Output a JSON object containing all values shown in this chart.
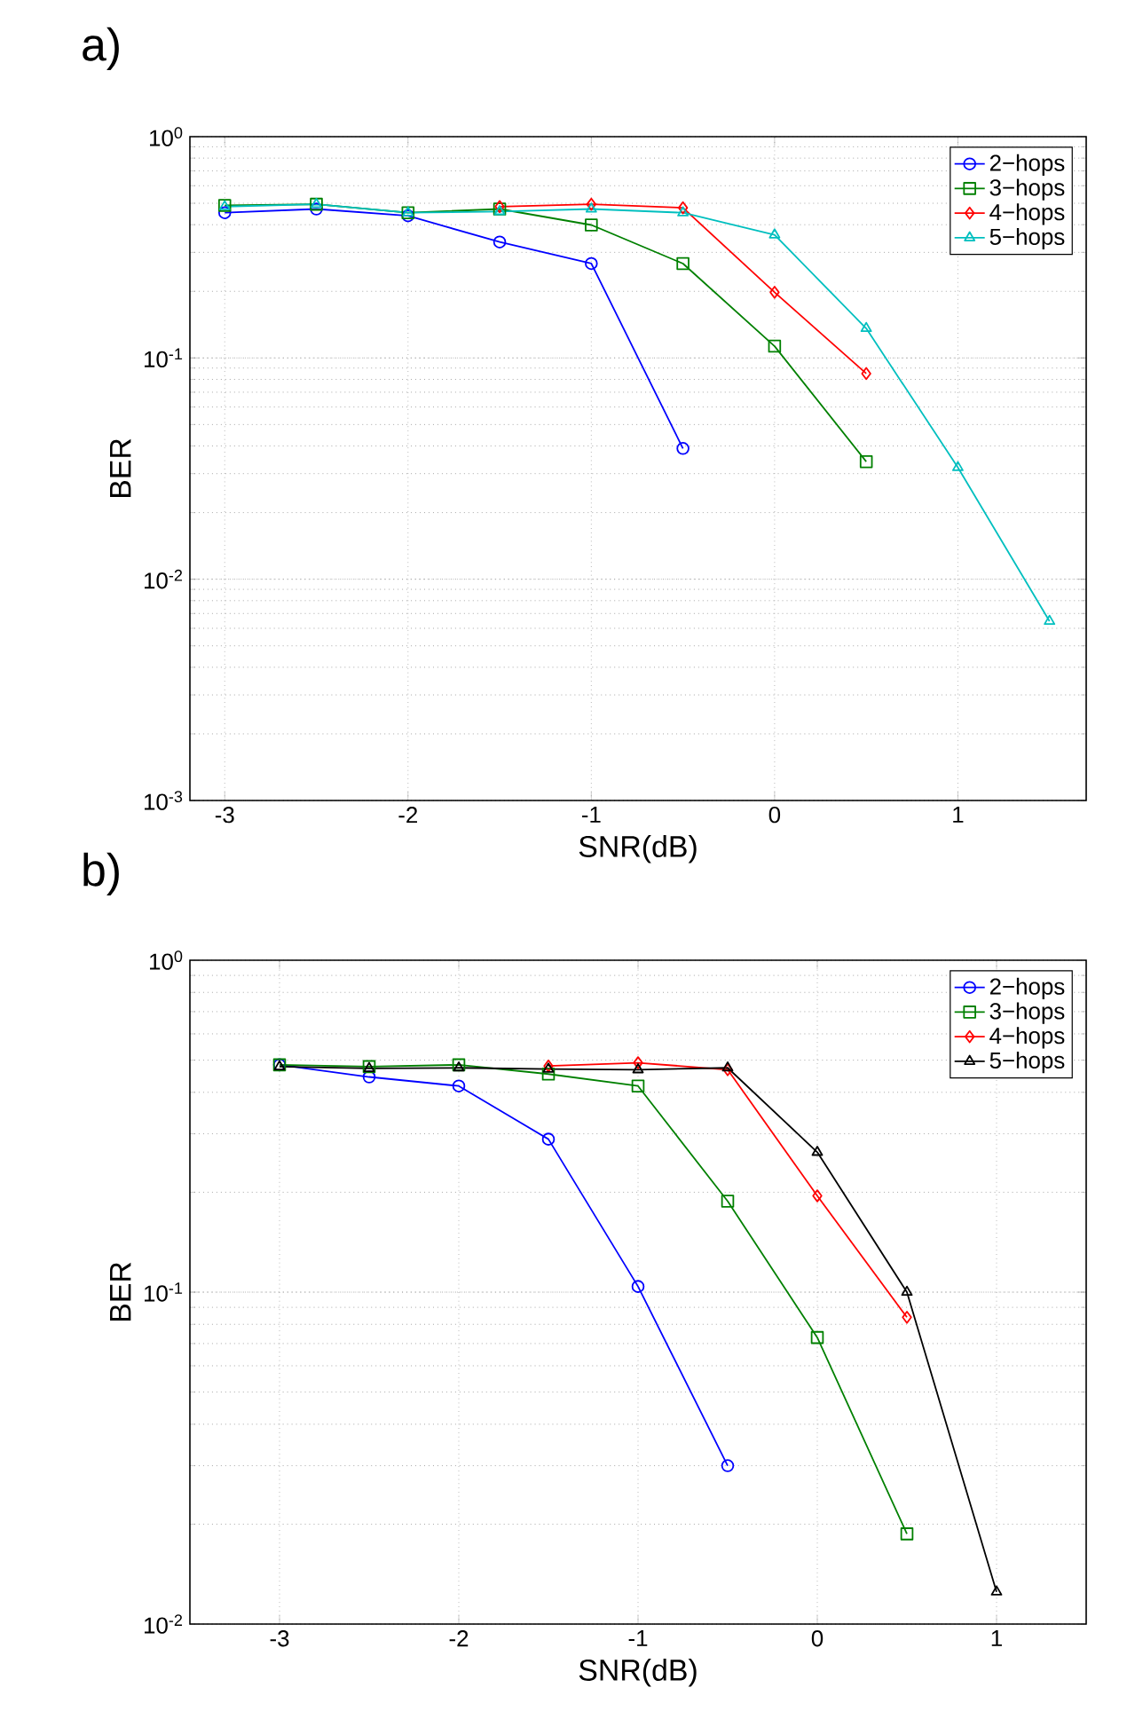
{
  "chart_data": [
    {
      "type": "line",
      "annotations": [
        "a)"
      ],
      "xlabel": "SNR(dB)",
      "ylabel": "BER",
      "log": "y",
      "grid": true,
      "legend": "top right",
      "xlim": [
        -3.19,
        1.7
      ],
      "xticks": [
        -3,
        -2,
        -1,
        0,
        1
      ],
      "ylim": [
        0.001,
        1
      ],
      "yticks": [
        {
          "value": 0.001,
          "label": "10$^{-3}$"
        },
        {
          "value": 0.01,
          "label": "10$^{-2}$"
        },
        {
          "value": 0.1,
          "label": "10$^{-1}$"
        },
        {
          "value": 1,
          "label": "10$^{0}$"
        }
      ],
      "series": [
        {
          "name": "2−hops",
          "color": "#0000ff",
          "marker": "circle",
          "x": [
            -3,
            -2.5,
            -2,
            -1.5,
            -1,
            -0.5
          ],
          "values": [
            0.453,
            0.471,
            0.439,
            0.334,
            0.267,
            0.039
          ]
        },
        {
          "name": "3−hops",
          "color": "#008000",
          "marker": "square",
          "x": [
            -3,
            -2.5,
            -2,
            -1.5,
            -1,
            -0.5,
            0,
            0.5
          ],
          "values": [
            0.489,
            0.495,
            0.453,
            0.471,
            0.399,
            0.267,
            0.113,
            0.034
          ]
        },
        {
          "name": "4−hops",
          "color": "#ff0000",
          "marker": "diamond",
          "x": [
            -1.5,
            -1,
            -0.5,
            0,
            0.5
          ],
          "values": [
            0.483,
            0.495,
            0.477,
            0.198,
            0.085
          ]
        },
        {
          "name": "5−hops",
          "color": "#00bfbf",
          "marker": "triangle",
          "x": [
            -3,
            -2.5,
            -2,
            -1.5,
            -1,
            -0.5,
            0,
            0.5,
            1,
            1.5
          ],
          "values": [
            0.483,
            0.495,
            0.453,
            0.459,
            0.471,
            0.453,
            0.36,
            0.136,
            0.032,
            0.00646
          ]
        }
      ]
    },
    {
      "type": "line",
      "annotations": [
        "b)"
      ],
      "xlabel": "SNR(dB)",
      "ylabel": "BER",
      "log": "y",
      "grid": true,
      "legend": "top right",
      "xlim": [
        -3.5,
        1.5
      ],
      "xticks": [
        -3,
        -2,
        -1,
        0,
        1
      ],
      "ylim": [
        0.01,
        1
      ],
      "yticks": [
        {
          "value": 0.01,
          "label": "10$^{-2}$"
        },
        {
          "value": 0.1,
          "label": "10$^{-1}$"
        },
        {
          "value": 1,
          "label": "10$^{0}$"
        }
      ],
      "series": [
        {
          "name": "2−hops",
          "color": "#0000ff",
          "marker": "circle",
          "x": [
            -3,
            -2.5,
            -2,
            -1.5,
            -1,
            -0.5
          ],
          "values": [
            0.484,
            0.445,
            0.418,
            0.289,
            0.104,
            0.03
          ]
        },
        {
          "name": "3−hops",
          "color": "#008000",
          "marker": "square",
          "x": [
            -3,
            -2.5,
            -2,
            -1.5,
            -1,
            -0.5,
            0,
            0.5
          ],
          "values": [
            0.484,
            0.478,
            0.484,
            0.454,
            0.418,
            0.188,
            0.073,
            0.0187
          ]
        },
        {
          "name": "4−hops",
          "color": "#ff0000",
          "marker": "diamond",
          "x": [
            -1.5,
            -1,
            -0.5,
            0,
            0.5
          ],
          "values": [
            0.48,
            0.491,
            0.468,
            0.195,
            0.084
          ]
        },
        {
          "name": "5−hops",
          "color": "#000000",
          "marker": "triangle",
          "x": [
            -3,
            -2.5,
            -2,
            -1.5,
            -1,
            -0.5,
            0,
            0.5,
            1
          ],
          "values": [
            0.478,
            0.472,
            0.474,
            0.47,
            0.468,
            0.474,
            0.264,
            0.1,
            0.0125
          ]
        }
      ]
    }
  ]
}
